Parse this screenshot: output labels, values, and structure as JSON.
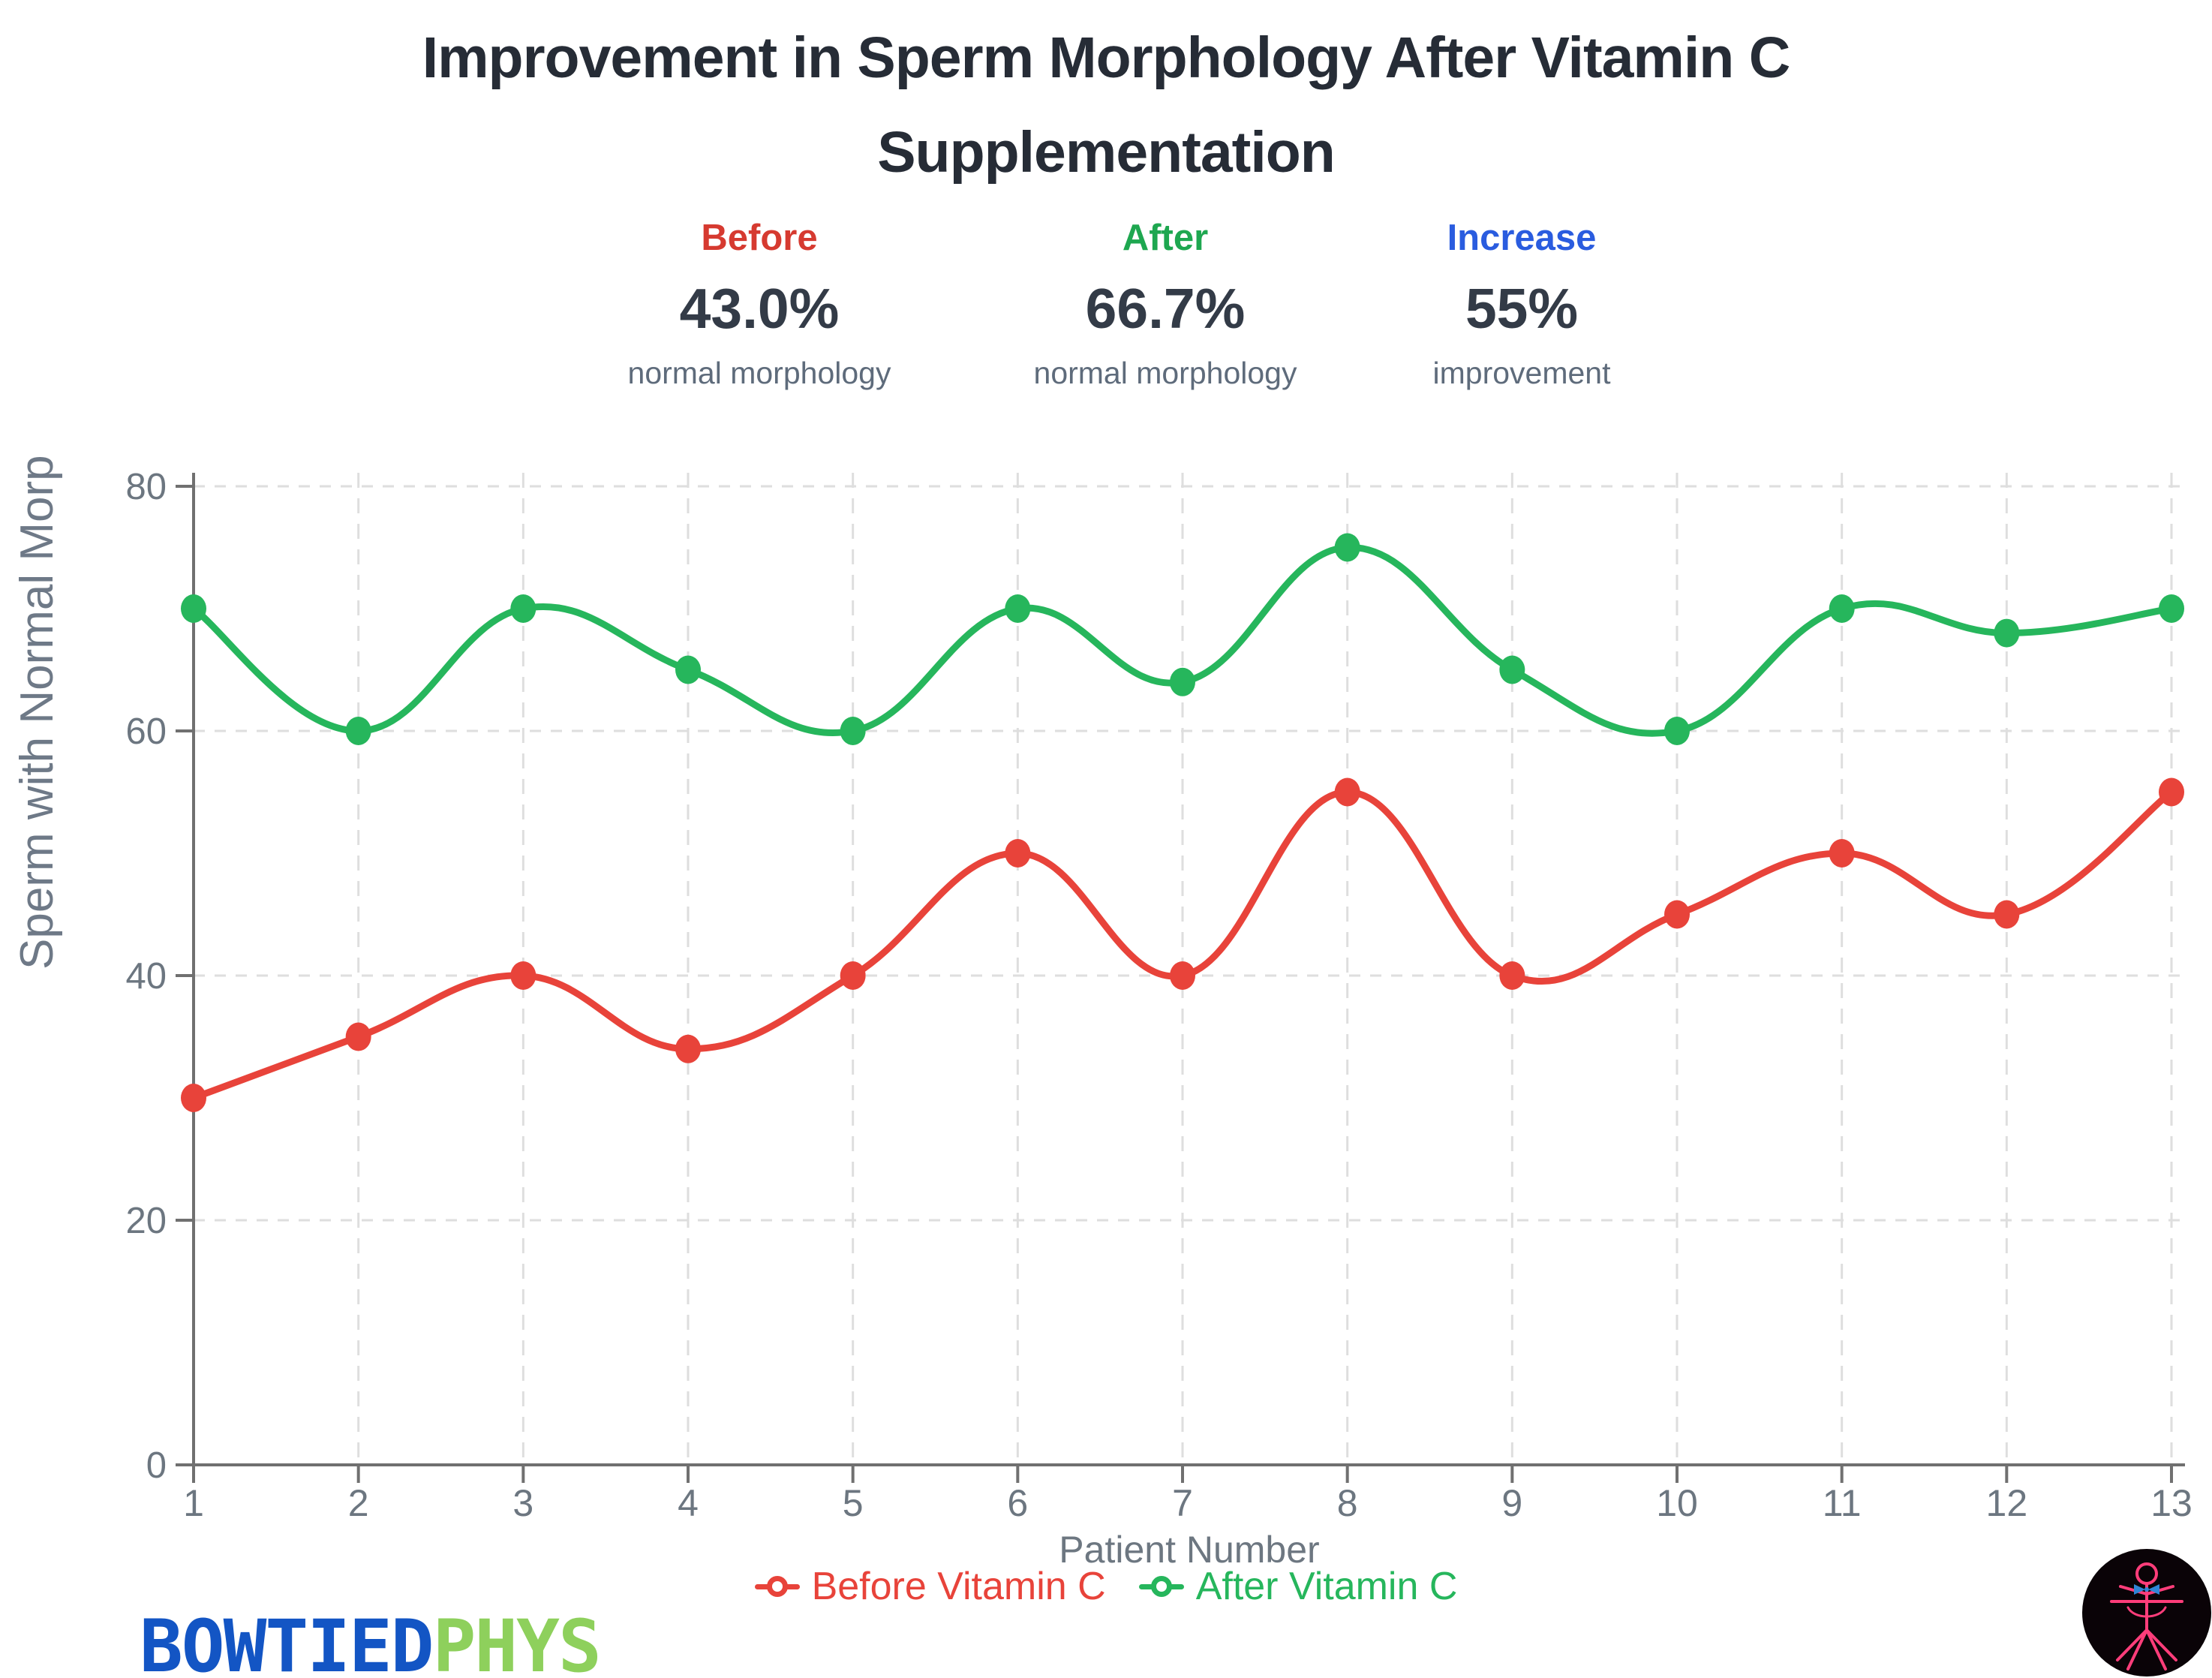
{
  "title": {
    "line1": "Improvement in Sperm Morphology After Vitamin C",
    "line2": "Supplementation"
  },
  "stats": [
    {
      "label": "Before",
      "value": "43.0%",
      "caption": "normal morphology",
      "label_color": "#d63a30"
    },
    {
      "label": "After",
      "value": "66.7%",
      "caption": "normal morphology",
      "label_color": "#1ea750"
    },
    {
      "label": "Increase",
      "value": "55%",
      "caption": "improvement",
      "label_color": "#2a5cdf"
    }
  ],
  "chart_data": {
    "type": "line",
    "x": [
      1,
      2,
      3,
      4,
      5,
      6,
      7,
      8,
      9,
      10,
      11,
      12,
      13
    ],
    "xlabel": "Patient Number",
    "ylabel": "Sperm with Normal Morp",
    "yticks": [
      0,
      20,
      40,
      60,
      80
    ],
    "ylim": [
      0,
      81
    ],
    "grid": true,
    "legend_position": "bottom",
    "series": [
      {
        "name": "Before Vitamin C",
        "color": "#e8433a",
        "values": [
          30,
          35,
          40,
          34,
          40,
          50,
          40,
          55,
          40,
          45,
          50,
          45,
          55
        ]
      },
      {
        "name": "After Vitamin C",
        "color": "#26b65c",
        "values": [
          70,
          60,
          70,
          65,
          60,
          70,
          64,
          75,
          65,
          60,
          70,
          68,
          70
        ]
      }
    ],
    "axis_color": "#707070",
    "grid_color": "#dedede",
    "tick_text_color": "#6c7680"
  },
  "branding": {
    "word1": "BOWTIED",
    "word2": "PHYS",
    "word1_color": "#1355c4",
    "word2_color": "#8ed05c"
  }
}
